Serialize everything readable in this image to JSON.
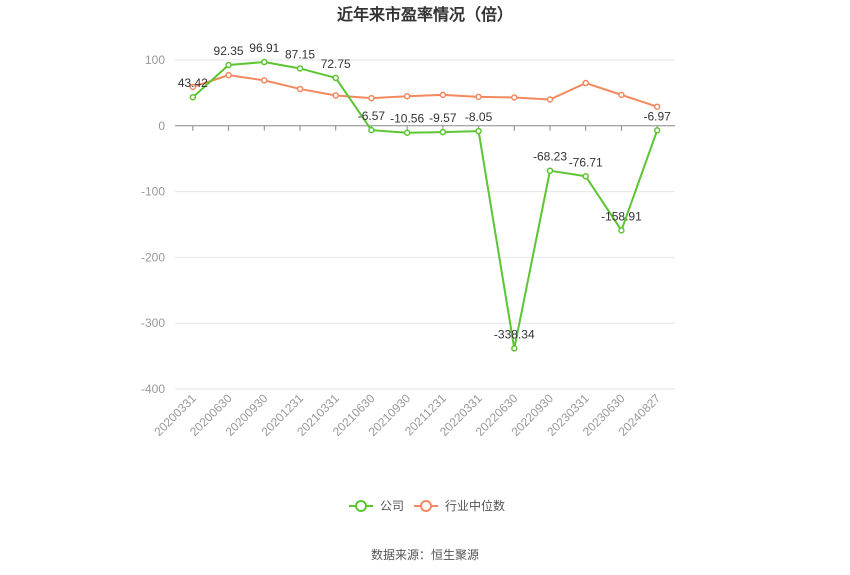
{
  "chart_data": {
    "type": "line",
    "title": "近年来市盈率情况（倍）",
    "categories": [
      "20200331",
      "20200630",
      "20200930",
      "20201231",
      "20210331",
      "20210630",
      "20210930",
      "20211231",
      "20220331",
      "20220630",
      "20220930",
      "20230331",
      "20230630",
      "20240827"
    ],
    "ylim": [
      -400,
      100
    ],
    "yticks": [
      100,
      0,
      -100,
      -200,
      -300,
      -400
    ],
    "grid": true,
    "legend_position": "bottom",
    "series": [
      {
        "name": "公司",
        "color": "#5cc531",
        "values": [
          43.42,
          92.35,
          96.91,
          87.15,
          72.75,
          -6.57,
          -10.56,
          -9.57,
          -8.05,
          -338.34,
          -68.23,
          -76.71,
          -158.91,
          -6.97
        ],
        "labels": [
          "43.42",
          "92.35",
          "96.91",
          "87.15",
          "72.75",
          "-6.57",
          "-10.56",
          "-9.57",
          "-8.05",
          "-338.34",
          "-68.23",
          "-76.71",
          "-158.91",
          "-6.97"
        ]
      },
      {
        "name": "行业中位数",
        "color": "#f4885e",
        "values": [
          59,
          77,
          69,
          56,
          46,
          42,
          45,
          47,
          44,
          43,
          40,
          65,
          47,
          29
        ]
      }
    ]
  },
  "source": "数据来源：恒生聚源"
}
